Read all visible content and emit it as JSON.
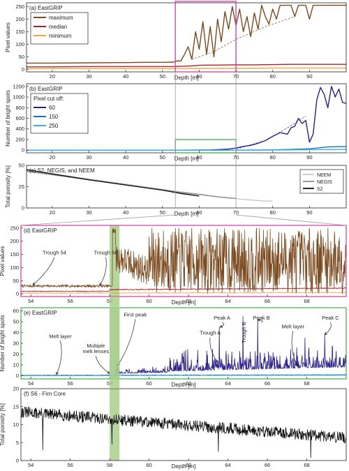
{
  "colors": {
    "maximum": "#7b4a1e",
    "median": "#b01e2a",
    "minimum": "#f2a93b",
    "cut60": "#2a1f8c",
    "cut150": "#1a6fbf",
    "cut250": "#32b5e6",
    "neem": "#c8c8c8",
    "negis": "#8a8a8a",
    "s2": "#111111",
    "magenta": "#d63aa0",
    "green": "#3fae49",
    "band": "#a8d08d",
    "connector": "#9a9a9a"
  },
  "chart_data": [
    {
      "id": "a",
      "type": "line",
      "panel_label": "(a) EastGRIP",
      "xlabel": "Depth [m]",
      "ylabel": "Pixel values",
      "xlim": [
        13,
        100
      ],
      "ylim": [
        -10,
        265
      ],
      "xticks": [
        20,
        30,
        40,
        50,
        60,
        70,
        80,
        90
      ],
      "legend": "top-left",
      "highlight_box": {
        "x": [
          53.5,
          70
        ],
        "color": "magenta"
      },
      "series": [
        {
          "name": "maximum",
          "color": "maximum",
          "x": [
            13,
            20,
            30,
            40,
            45,
            50,
            53,
            54,
            55,
            56,
            57,
            58,
            59,
            60,
            61,
            62,
            63,
            64,
            65,
            66,
            67,
            68,
            69,
            70,
            71,
            72,
            73,
            74,
            75,
            76,
            77,
            78,
            79,
            80,
            81,
            82,
            83,
            84,
            85,
            86,
            87,
            88,
            89,
            90,
            91,
            92,
            93,
            94,
            95,
            96,
            97,
            98,
            99,
            100
          ],
          "values": [
            25,
            25,
            26,
            27,
            28,
            28,
            29,
            34,
            33,
            60,
            90,
            40,
            150,
            80,
            190,
            60,
            170,
            50,
            200,
            110,
            230,
            160,
            250,
            175,
            240,
            150,
            210,
            130,
            225,
            160,
            255,
            210,
            180,
            240,
            200,
            255,
            255,
            255,
            255,
            210,
            255,
            255,
            255,
            200,
            255,
            255,
            255,
            255,
            255,
            255,
            255,
            255,
            255,
            255
          ]
        },
        {
          "name": "median",
          "color": "median",
          "x": [
            13,
            20,
            30,
            40,
            50,
            53,
            55,
            58,
            60,
            62,
            65,
            70,
            75,
            80,
            85,
            90,
            95,
            100
          ],
          "values": [
            10,
            10,
            11,
            11,
            11,
            11,
            12,
            14,
            16,
            17,
            17,
            18,
            18,
            19,
            20,
            20,
            20,
            20
          ]
        },
        {
          "name": "minimum",
          "color": "minimum",
          "x": [
            13,
            20,
            30,
            40,
            50,
            55,
            60,
            70,
            80,
            90,
            100
          ],
          "values": [
            3,
            3,
            3,
            3,
            3,
            3,
            4,
            4,
            5,
            5,
            5
          ]
        }
      ],
      "trend": {
        "color": "maximum",
        "x": [
          58,
          64,
          70,
          78,
          86
        ],
        "values": [
          40,
          70,
          120,
          170,
          210
        ]
      }
    },
    {
      "id": "b",
      "type": "line",
      "panel_label": "(b) EastGRIP",
      "xlabel": "Depth [m]",
      "ylabel": "Number of bright spots",
      "xlim": [
        13,
        100
      ],
      "ylim": [
        -50,
        1250
      ],
      "yticks": [
        0,
        200,
        400,
        600,
        800,
        1000,
        1200
      ],
      "legend_title": "Pixel cut off:",
      "legend": "top-left",
      "highlight_box": {
        "x": [
          53.5,
          70
        ],
        "ymax": 200,
        "color": "green"
      },
      "series": [
        {
          "name": "60",
          "color": "cut60",
          "x": [
            13,
            30,
            50,
            55,
            60,
            63,
            65,
            68,
            70,
            72,
            74,
            76,
            78,
            80,
            82,
            84,
            85,
            86,
            87,
            88,
            89,
            90,
            91,
            92,
            93,
            94,
            95,
            96,
            97,
            98,
            99,
            100
          ],
          "values": [
            0,
            0,
            0,
            0,
            2,
            5,
            10,
            20,
            40,
            70,
            90,
            130,
            180,
            260,
            330,
            300,
            420,
            450,
            600,
            500,
            560,
            150,
            300,
            950,
            1180,
            1050,
            800,
            1200,
            1000,
            1150,
            900,
            880
          ]
        },
        {
          "name": "150",
          "color": "cut150",
          "x": [
            13,
            50,
            70,
            80,
            85,
            90,
            95,
            100
          ],
          "values": [
            0,
            0,
            0,
            5,
            15,
            25,
            60,
            70
          ]
        },
        {
          "name": "250",
          "color": "cut250",
          "x": [
            13,
            50,
            70,
            80,
            90,
            100
          ],
          "values": [
            0,
            0,
            0,
            2,
            8,
            15
          ]
        }
      ],
      "trend": {
        "color": "cut60",
        "x": [
          70,
          78,
          84,
          89
        ],
        "values": [
          20,
          180,
          420,
          640
        ]
      }
    },
    {
      "id": "c",
      "type": "line",
      "panel_label": "(c) S2, NEGIS, and NEEM",
      "xlabel": "Depth [m]",
      "ylabel": "Total porosity [%]",
      "xlim": [
        13,
        100
      ],
      "ylim": [
        0,
        50
      ],
      "yticks": [
        0,
        25,
        50
      ],
      "legend": "top-right",
      "series": [
        {
          "name": "NEEM",
          "color": "neem",
          "x": [
            13,
            20,
            30,
            40,
            50,
            60,
            65,
            70,
            72,
            75,
            78,
            80
          ],
          "values": [
            44,
            40,
            34,
            28,
            22,
            16,
            13,
            11,
            10,
            9,
            8,
            8
          ]
        },
        {
          "name": "NEGIS",
          "color": "negis",
          "x": [
            13,
            20,
            30,
            40,
            50,
            55,
            60,
            65,
            70
          ],
          "values": [
            43,
            39,
            33,
            27,
            21,
            18,
            16,
            13,
            11
          ]
        },
        {
          "name": "S2",
          "color": "s2",
          "x": [
            13,
            20,
            30,
            40,
            50,
            55,
            60
          ],
          "values": [
            45,
            40,
            33,
            27,
            21,
            17,
            14
          ]
        }
      ]
    },
    {
      "id": "d",
      "type": "line",
      "panel_label": "(d) EastGRIP",
      "xlabel": "Depth [m]",
      "ylabel": "Pixel values",
      "xlim": [
        53.5,
        70
      ],
      "ylim": [
        -10,
        260
      ],
      "xticks": [
        54,
        56,
        58,
        60,
        62,
        64,
        66,
        68
      ],
      "frame_color": "magenta",
      "band": [
        58,
        58.5
      ],
      "annotations": [
        {
          "text": "Trough 54",
          "x": 55.2,
          "y": 150,
          "arrow_to": [
            54.1,
            34
          ]
        },
        {
          "text": "Trough 58",
          "x": 57.8,
          "y": 150,
          "arrow_to": [
            57.5,
            32
          ]
        }
      ],
      "series": [
        {
          "name": "maximum",
          "color": "maximum",
          "noise": {
            "seed": 7,
            "segments": [
              {
                "x": [
                  53.5,
                  58.15
                ],
                "base": [
                  30,
                  30
                ],
                "amp": 5
              },
              {
                "x": [
                  58.15,
                  58.3
                ],
                "base": [
                  240,
                  240
                ],
                "amp": 10
              },
              {
                "x": [
                  58.3,
                  60
                ],
                "base": [
                  140,
                  85
                ],
                "amp": 55
              },
              {
                "x": [
                  60,
                  70
                ],
                "base": [
                  125,
                  125
                ],
                "amp": 125
              }
            ]
          }
        },
        {
          "name": "median",
          "color": "median",
          "noise": {
            "seed": 11,
            "segments": [
              {
                "x": [
                  53.5,
                  58
                ],
                "base": [
                  10,
                  10
                ],
                "amp": 1.5
              },
              {
                "x": [
                  58,
                  70
                ],
                "base": [
                  16,
                  22
                ],
                "amp": 2
              }
            ]
          }
        },
        {
          "name": "minimum",
          "color": "minimum",
          "noise": {
            "seed": 13,
            "segments": [
              {
                "x": [
                  53.5,
                  70
                ],
                "base": [
                  3,
                  5
                ],
                "amp": 1.5
              }
            ]
          }
        }
      ]
    },
    {
      "id": "e",
      "type": "line",
      "panel_label": "(e) EastGRIP",
      "xlabel": "Depth [m]",
      "ylabel": "Number of bright spots",
      "xlim": [
        53.5,
        70
      ],
      "ylim": [
        -3,
        63
      ],
      "yticks": [
        0,
        10,
        20,
        30,
        40,
        50,
        60
      ],
      "frame_color": "green",
      "band": [
        58,
        58.5
      ],
      "annotations": [
        {
          "text": "Melt layer",
          "x": 55.5,
          "y": 35,
          "arrow_to": [
            55.3,
            1
          ]
        },
        {
          "text": "Multiple",
          "x": 57.3,
          "y": 26,
          "arrow_to": null
        },
        {
          "text": "melt lenses",
          "x": 57.3,
          "y": 21,
          "arrow_to": [
            58.0,
            2
          ]
        },
        {
          "text": "First peak",
          "x": 59.3,
          "y": 55,
          "arrow_to": [
            58.4,
            9
          ]
        },
        {
          "text": "Trough A",
          "x": 63.1,
          "y": 38,
          "arrow_to": [
            63.5,
            12
          ]
        },
        {
          "text": "Peak A",
          "x": 63.7,
          "y": 52,
          "arrow_to": [
            63.6,
            45
          ]
        },
        {
          "text": "Trough B",
          "x": 64.9,
          "y": 40,
          "arrow_to": null,
          "rotate": true
        },
        {
          "text": "Peak B",
          "x": 65.7,
          "y": 52,
          "arrow_to": [
            65.5,
            52
          ]
        },
        {
          "text": "Melt layer",
          "x": 67.3,
          "y": 44,
          "arrow_to": [
            67.5,
            9
          ]
        },
        {
          "text": "Peak C",
          "x": 69.2,
          "y": 52,
          "arrow_to": [
            68.9,
            38
          ]
        }
      ],
      "series": [
        {
          "name": "60",
          "color": "cut60",
          "noise": {
            "seed": 21,
            "spiky": true,
            "segments": [
              {
                "x": [
                  53.5,
                  58.3
                ],
                "base": [
                  0,
                  0
                ],
                "amp": 0.4
              },
              {
                "x": [
                  58.3,
                  61
                ],
                "base": [
                  2,
                  3
                ],
                "amp": 6
              },
              {
                "x": [
                  61,
                  70
                ],
                "base": [
                  4,
                  8
                ],
                "amp": 20
              }
            ],
            "peaks": [
              [
                58.35,
                12
              ],
              [
                63.55,
                45
              ],
              [
                64.75,
                55
              ],
              [
                65.5,
                52
              ],
              [
                68.9,
                38
              ],
              [
                67.9,
                35
              ]
            ]
          }
        },
        {
          "name": "150",
          "color": "cut150",
          "noise": {
            "seed": 23,
            "segments": [
              {
                "x": [
                  53.5,
                  70
                ],
                "base": [
                  0.3,
                  0.8
                ],
                "amp": 0.3
              }
            ]
          }
        },
        {
          "name": "250",
          "color": "cut250",
          "noise": {
            "seed": 29,
            "segments": [
              {
                "x": [
                  53.5,
                  70
                ],
                "base": [
                  0,
                  0.3
                ],
                "amp": 0.2
              }
            ]
          }
        }
      ]
    },
    {
      "id": "f",
      "type": "line",
      "panel_label": "(f) S6 - Firn Core",
      "xlabel": "Depth [m]",
      "ylabel": "Total porosity [%]",
      "xlim": [
        53.5,
        70
      ],
      "ylim": [
        0,
        20
      ],
      "yticks": [
        0,
        5,
        10,
        15,
        20
      ],
      "xticks": [
        54,
        56,
        58,
        60,
        62,
        64,
        66,
        68
      ],
      "band": [
        58,
        58.5
      ],
      "series": [
        {
          "name": "S6",
          "color": "s2",
          "noise": {
            "seed": 31,
            "segments": [
              {
                "x": [
                  53.5,
                  70
                ],
                "base": [
                  13.5,
                  6.3
                ],
                "amp": 1.6
              }
            ],
            "dips": [
              [
                54.6,
                3
              ],
              [
                58.1,
                4.5
              ],
              [
                63.5,
                2.5
              ],
              [
                68.2,
                0.8
              ]
            ]
          }
        }
      ]
    }
  ]
}
